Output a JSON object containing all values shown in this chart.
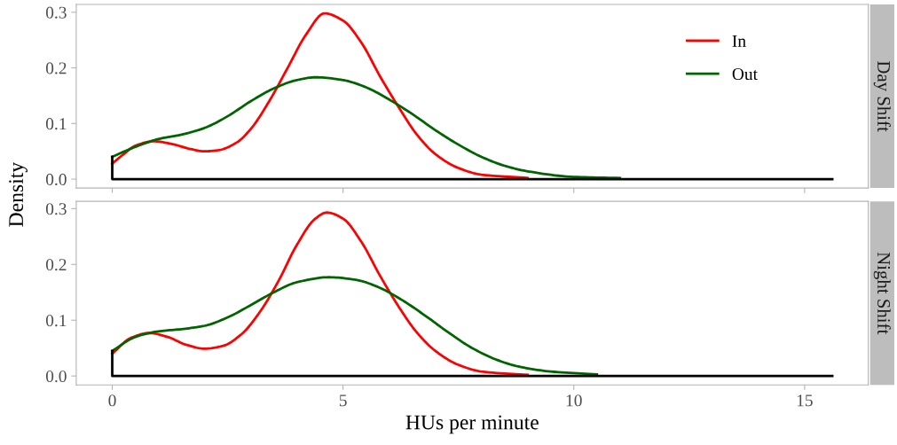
{
  "chart_data": [
    {
      "type": "line",
      "title": "Day Shift",
      "ylabel": "Density",
      "legend": "top right",
      "tick_labels": "y",
      "xlim": [
        -0.78,
        16.38
      ],
      "ylim": [
        -0.016,
        0.314
      ],
      "xticks": [
        0,
        5,
        10,
        15
      ],
      "yticks": [
        {
          "value": 0,
          "label": "0.0"
        },
        {
          "value": 0.1,
          "label": "0.1"
        },
        {
          "value": 0.2,
          "label": "0.2"
        },
        {
          "value": 0.3,
          "label": "0.3"
        }
      ],
      "series": [
        {
          "name": "In",
          "color": "#ff0000",
          "x": [
            0,
            0.25,
            0.5,
            0.9,
            1.3,
            1.7,
            2.0,
            2.3,
            2.7,
            3.0,
            3.4,
            3.8,
            4.2,
            4.6,
            5.0,
            5.4,
            5.8,
            6.2,
            6.6,
            7.0,
            7.5,
            8,
            9
          ],
          "values": [
            0.028,
            0.045,
            0.06,
            0.068,
            0.063,
            0.054,
            0.05,
            0.052,
            0.066,
            0.09,
            0.14,
            0.2,
            0.26,
            0.298,
            0.285,
            0.245,
            0.185,
            0.13,
            0.08,
            0.045,
            0.02,
            0.008,
            0.002
          ]
        },
        {
          "name": "Out",
          "color": "#006400",
          "x": [
            0,
            0.5,
            1.0,
            1.5,
            2.0,
            2.5,
            3.0,
            3.5,
            4.0,
            4.4,
            5.0,
            5.5,
            6.0,
            6.5,
            7.0,
            7.5,
            8.0,
            8.5,
            9.0,
            10,
            11
          ],
          "values": [
            0.04,
            0.058,
            0.072,
            0.08,
            0.092,
            0.113,
            0.14,
            0.163,
            0.178,
            0.183,
            0.178,
            0.165,
            0.143,
            0.117,
            0.088,
            0.062,
            0.04,
            0.024,
            0.014,
            0.004,
            0.002
          ]
        },
        {
          "color": "#000000",
          "x": [
            0,
            0,
            15.6
          ],
          "values": [
            0.04,
            0,
            0
          ]
        }
      ]
    },
    {
      "type": "line",
      "title": "Night Shift",
      "xlabel": "HUs per minute",
      "xlim": [
        -0.78,
        16.38
      ],
      "ylim": [
        -0.016,
        0.313
      ],
      "xticks": [
        0,
        5,
        10,
        15
      ],
      "yticks": [
        {
          "value": 0,
          "label": "0.0"
        },
        {
          "value": 0.1,
          "label": "0.1"
        },
        {
          "value": 0.2,
          "label": "0.2"
        },
        {
          "value": 0.3,
          "label": "0.3"
        }
      ],
      "series": [
        {
          "color": "#ff0000",
          "x": [
            0,
            0.4,
            0.8,
            1.2,
            1.6,
            2.0,
            2.4,
            2.8,
            3.2,
            3.6,
            4.0,
            4.4,
            4.65,
            5.0,
            5.4,
            5.8,
            6.2,
            6.6,
            7.0,
            7.5,
            8,
            9
          ],
          "values": [
            0.04,
            0.068,
            0.077,
            0.07,
            0.056,
            0.049,
            0.054,
            0.075,
            0.115,
            0.17,
            0.235,
            0.282,
            0.293,
            0.282,
            0.24,
            0.18,
            0.125,
            0.078,
            0.045,
            0.02,
            0.008,
            0.002
          ]
        },
        {
          "color": "#006400",
          "x": [
            0,
            0.5,
            1.0,
            1.5,
            2.0,
            2.5,
            3.0,
            3.5,
            4.0,
            4.7,
            5.3,
            5.8,
            6.3,
            6.8,
            7.3,
            7.8,
            8.3,
            8.8,
            9.5,
            10.5
          ],
          "values": [
            0.045,
            0.07,
            0.08,
            0.084,
            0.09,
            0.105,
            0.127,
            0.15,
            0.168,
            0.177,
            0.172,
            0.158,
            0.135,
            0.107,
            0.077,
            0.05,
            0.03,
            0.017,
            0.008,
            0.003
          ]
        },
        {
          "color": "#000000",
          "x": [
            0,
            0,
            15.6
          ],
          "values": [
            0.045,
            0,
            0
          ]
        }
      ]
    }
  ]
}
